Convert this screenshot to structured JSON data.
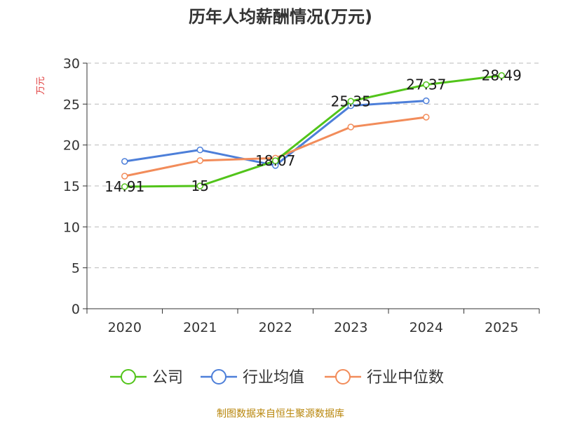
{
  "chart_data": {
    "type": "line",
    "title": "历年人均薪酬情况(万元)",
    "ylabel": "万元",
    "xlabel": "",
    "ylim": [
      0,
      30
    ],
    "yticks": [
      0,
      5,
      10,
      15,
      20,
      25,
      30
    ],
    "categories": [
      "2020",
      "2021",
      "2022",
      "2023",
      "2024",
      "2025"
    ],
    "grid": true,
    "legend_position": "bottom",
    "series": [
      {
        "name": "公司",
        "color": "#52c41a",
        "values": [
          14.91,
          15,
          18.07,
          25.35,
          27.37,
          28.49
        ],
        "labels": [
          "14.91",
          "15",
          "18.07",
          "25.35",
          "27.37",
          "28.49"
        ]
      },
      {
        "name": "行业均值",
        "color": "#4d7fd9",
        "values": [
          18.0,
          19.4,
          17.5,
          24.8,
          25.4,
          null
        ]
      },
      {
        "name": "行业中位数",
        "color": "#f28c5a",
        "values": [
          16.2,
          18.1,
          18.4,
          22.2,
          23.4,
          null
        ]
      }
    ]
  },
  "source": "制图数据来自恒生聚源数据库",
  "colors": {
    "ylabel": "#e03a3a",
    "source": "#b8860b",
    "axis": "#333333",
    "grid": "#bbbbbb"
  }
}
